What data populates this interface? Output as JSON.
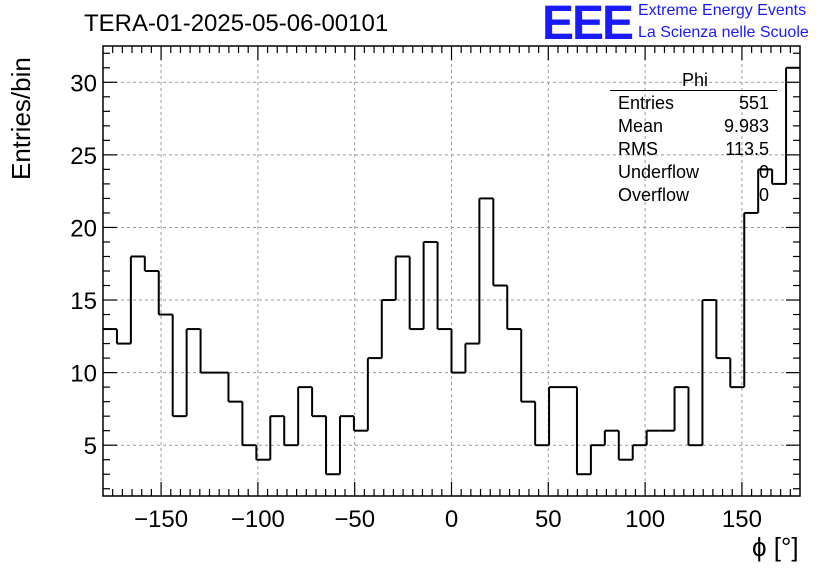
{
  "title": "TERA-01-2025-05-06-00101",
  "logo": {
    "mark": "EEE",
    "line1": "Extreme Energy Events",
    "line2": "La Scienza nelle Scuole",
    "color": "#1a1aff"
  },
  "stats_box": {
    "name": "Phi",
    "rows": [
      {
        "key": "Entries",
        "value": "551"
      },
      {
        "key": "Mean",
        "value": "9.983"
      },
      {
        "key": "RMS",
        "value": "113.5"
      },
      {
        "key": "Underflow",
        "value": "0"
      },
      {
        "key": "Overflow",
        "value": "0"
      }
    ]
  },
  "chart_data": {
    "type": "histogram",
    "title": "TERA-01-2025-05-06-00101",
    "xlabel": "ϕ [°]",
    "ylabel": "Entries/bin",
    "xlim": [
      -180,
      180
    ],
    "ylim": [
      1.5,
      32.5
    ],
    "bin_width": 7.2,
    "bin_low_edges": [
      -180,
      -172.8,
      -165.6,
      -158.4,
      -151.2,
      -144,
      -136.8,
      -129.6,
      -122.4,
      -115.2,
      -108,
      -100.8,
      -93.6,
      -86.4,
      -79.2,
      -72,
      -64.8,
      -57.6,
      -50.4,
      -43.2,
      -36,
      -28.8,
      -21.6,
      -14.4,
      -7.2,
      0,
      7.2,
      14.4,
      21.6,
      28.8,
      36,
      43.2,
      50.4,
      57.6,
      64.8,
      72,
      79.2,
      86.4,
      93.6,
      100.8,
      108,
      115.2,
      122.4,
      129.6,
      136.8,
      144,
      151.2,
      158.4,
      165.6,
      172.8
    ],
    "values": [
      13,
      12,
      18,
      17,
      14,
      7,
      13,
      10,
      10,
      8,
      5,
      4,
      7,
      5,
      9,
      7,
      3,
      7,
      6,
      11,
      15,
      18,
      13,
      19,
      13,
      10,
      12,
      22,
      16,
      13,
      8,
      5,
      9,
      9,
      3,
      5,
      6,
      4,
      5,
      6,
      6,
      9,
      5,
      15,
      11,
      9,
      21,
      24,
      23,
      31
    ],
    "x_ticks": [
      -150,
      -100,
      -50,
      0,
      50,
      100,
      150
    ],
    "x_tick_labels": [
      "−150",
      "−100",
      "−50",
      "0",
      "50",
      "100",
      "150"
    ],
    "y_ticks": [
      5,
      10,
      15,
      20,
      25,
      30
    ],
    "y_tick_labels": [
      "5",
      "10",
      "15",
      "20",
      "25",
      "30"
    ],
    "grid": true,
    "legend": "stats box top-right"
  }
}
